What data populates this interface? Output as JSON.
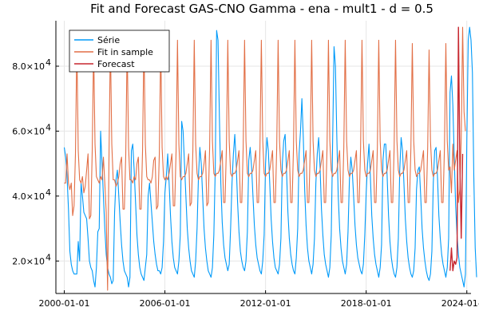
{
  "chart_data": {
    "type": "line",
    "title": "Fit and Forecast GAS-CNO Gamma - ena - mult1 - d = 0.5",
    "xlabel": "",
    "ylabel": "",
    "x_range": [
      "1999-07-01",
      "2024-04-01"
    ],
    "ylim": [
      10000,
      94000
    ],
    "x_ticks": [
      {
        "date": "2000-01-01",
        "label": "2000-01-01"
      },
      {
        "date": "2006-01-01",
        "label": "2006-01-01"
      },
      {
        "date": "2012-01-01",
        "label": "2012-01-01"
      },
      {
        "date": "2018-01-01",
        "label": "2018-01-01"
      },
      {
        "date": "2024-01-01",
        "label": "2024-01-01"
      }
    ],
    "y_ticks": [
      {
        "value": 20000,
        "mantissa": "2.0",
        "base": "×10",
        "exp": "4"
      },
      {
        "value": 40000,
        "mantissa": "4.0",
        "base": "×10",
        "exp": "4"
      },
      {
        "value": 60000,
        "mantissa": "6.0",
        "base": "×10",
        "exp": "4"
      },
      {
        "value": 80000,
        "mantissa": "8.0",
        "base": "×10",
        "exp": "4"
      }
    ],
    "grid": true,
    "legend_position": "top-left",
    "series": [
      {
        "name": "Série",
        "color": "#009af9",
        "x_start": "2000-01-01",
        "frequency": "monthly",
        "values": [
          55000,
          52000,
          46000,
          36000,
          23000,
          19000,
          17000,
          16000,
          16000,
          16000,
          26000,
          20000,
          44000,
          40000,
          35000,
          34000,
          33000,
          27000,
          20000,
          18000,
          17000,
          14000,
          12000,
          18000,
          29000,
          30000,
          60000,
          50000,
          40000,
          30000,
          22000,
          18000,
          16000,
          15000,
          13000,
          14000,
          35000,
          45000,
          48000,
          40000,
          32000,
          25000,
          20000,
          17000,
          16000,
          15000,
          12000,
          15000,
          54000,
          56000,
          48000,
          38000,
          28000,
          22000,
          18000,
          16000,
          15000,
          14000,
          18000,
          22000,
          40000,
          44000,
          38000,
          32000,
          26000,
          22000,
          19000,
          17000,
          17000,
          16000,
          18000,
          26000,
          41000,
          46000,
          53000,
          44000,
          34000,
          26000,
          21000,
          18000,
          17000,
          16000,
          20000,
          28000,
          63000,
          60000,
          50000,
          40000,
          30000,
          24000,
          20000,
          17000,
          16000,
          15000,
          20000,
          30000,
          46000,
          55000,
          50000,
          40000,
          30000,
          24000,
          20000,
          17000,
          16000,
          15000,
          18000,
          28000,
          48000,
          91000,
          88000,
          64000,
          44000,
          32000,
          25000,
          21000,
          19000,
          17000,
          19000,
          30000,
          44000,
          53000,
          59000,
          50000,
          38000,
          29000,
          23000,
          20000,
          18000,
          17000,
          20000,
          29000,
          51000,
          55000,
          49000,
          40000,
          31000,
          25000,
          21000,
          19000,
          17000,
          16000,
          20000,
          28000,
          50000,
          58000,
          54000,
          44000,
          33000,
          26000,
          21000,
          18000,
          17000,
          16000,
          19000,
          27000,
          50000,
          57000,
          59000,
          48000,
          35000,
          27000,
          22000,
          19000,
          17000,
          16000,
          21000,
          30000,
          53000,
          60000,
          70000,
          58000,
          42000,
          31000,
          24000,
          20000,
          18000,
          16000,
          19000,
          27000,
          44000,
          53000,
          58000,
          49000,
          36000,
          28000,
          22000,
          19000,
          17000,
          15000,
          18000,
          28000,
          57000,
          86000,
          80000,
          58000,
          40000,
          30000,
          24000,
          20000,
          18000,
          16000,
          19000,
          29000,
          45000,
          52000,
          48000,
          40000,
          31000,
          25000,
          21000,
          19000,
          17000,
          16000,
          19000,
          28000,
          41000,
          50000,
          56000,
          46000,
          34000,
          27000,
          22000,
          19000,
          17000,
          15000,
          18000,
          25000,
          51000,
          56000,
          56000,
          46000,
          34000,
          26000,
          21000,
          18000,
          16000,
          15000,
          18000,
          27000,
          48000,
          58000,
          54000,
          44000,
          33000,
          26000,
          21000,
          18000,
          16000,
          15000,
          17000,
          24000,
          42000,
          48000,
          49000,
          40000,
          30000,
          24000,
          20000,
          17000,
          15000,
          14000,
          16000,
          23000,
          44000,
          54000,
          55000,
          46000,
          34000,
          27000,
          22000,
          19000,
          17000,
          15000,
          18000,
          27000,
          72000,
          77000,
          68000,
          52000,
          37000,
          28000,
          22000,
          18000,
          16000,
          14000,
          12000,
          16000,
          57000,
          88000,
          92000,
          88000,
          78000,
          46000,
          24000,
          15000
        ]
      },
      {
        "name": "Fit in sample",
        "color": "#e26f46",
        "x_start": "2000-01-01",
        "frequency": "monthly",
        "values": [
          44000,
          44000,
          53000,
          44000,
          42000,
          44000,
          34000,
          37000,
          53000,
          87000,
          54000,
          45000,
          44000,
          46000,
          41000,
          43000,
          48000,
          53000,
          33000,
          34000,
          54000,
          86000,
          56000,
          46000,
          45000,
          44000,
          46000,
          45000,
          52000,
          44000,
          35000,
          11000,
          52000,
          88000,
          56000,
          45000,
          45000,
          43000,
          44000,
          46000,
          50000,
          52000,
          36000,
          36000,
          53000,
          87000,
          55000,
          45000,
          45000,
          44000,
          46000,
          45000,
          50000,
          52000,
          36000,
          36000,
          54000,
          88000,
          56000,
          46000,
          45000,
          45000,
          44000,
          46000,
          51000,
          52000,
          36000,
          37000,
          53000,
          87000,
          55000,
          46000,
          45000,
          46000,
          45000,
          47000,
          50000,
          53000,
          37000,
          37000,
          54000,
          88000,
          56000,
          46000,
          45000,
          46000,
          46000,
          47000,
          50000,
          53000,
          37000,
          38000,
          54000,
          88000,
          56000,
          47000,
          45000,
          46000,
          46000,
          47000,
          50000,
          54000,
          37000,
          38000,
          55000,
          88000,
          57000,
          47000,
          46000,
          47000,
          47000,
          48000,
          51000,
          54000,
          38000,
          38000,
          55000,
          88000,
          57000,
          47000,
          46000,
          47000,
          47000,
          48000,
          51000,
          54000,
          38000,
          38000,
          55000,
          88000,
          57000,
          47000,
          46000,
          47000,
          47000,
          48000,
          51000,
          54000,
          38000,
          38000,
          55000,
          88000,
          57000,
          47000,
          46000,
          47000,
          47000,
          48000,
          51000,
          54000,
          38000,
          38000,
          55000,
          88000,
          57000,
          48000,
          46000,
          47000,
          47000,
          48000,
          51000,
          54000,
          38000,
          38000,
          55000,
          88000,
          57000,
          48000,
          46000,
          47000,
          47000,
          48000,
          51000,
          54000,
          38000,
          38000,
          55000,
          88000,
          57000,
          48000,
          46000,
          47000,
          47000,
          48000,
          51000,
          54000,
          38000,
          38000,
          55000,
          88000,
          57000,
          48000,
          46000,
          47000,
          47000,
          48000,
          51000,
          54000,
          38000,
          38000,
          55000,
          88000,
          57000,
          48000,
          46000,
          47000,
          47000,
          48000,
          51000,
          54000,
          38000,
          38000,
          55000,
          88000,
          57000,
          48000,
          46000,
          47000,
          47000,
          48000,
          51000,
          54000,
          38000,
          38000,
          55000,
          88000,
          57000,
          48000,
          46000,
          47000,
          47000,
          48000,
          51000,
          54000,
          38000,
          38000,
          55000,
          88000,
          57000,
          48000,
          46000,
          47000,
          47000,
          48000,
          51000,
          54000,
          38000,
          38000,
          55000,
          87000,
          57000,
          48000,
          46000,
          47000,
          47000,
          48000,
          51000,
          54000,
          38000,
          38000,
          55000,
          85000,
          57000,
          48000,
          46000,
          47000,
          47000,
          48000,
          51000,
          54000,
          38000,
          38000,
          55000,
          87000,
          57000,
          48000,
          49000,
          41000,
          56000,
          48000,
          51000,
          54000,
          38000,
          42000,
          58000,
          92000,
          66000,
          60000
        ]
      },
      {
        "name": "Forecast",
        "color": "#c7272f",
        "x_start": "2023-01-01",
        "frequency": "monthly",
        "values": [
          17000,
          24000,
          17000,
          20000,
          19000,
          21000,
          92000,
          50000,
          27000,
          53000
        ]
      }
    ]
  }
}
